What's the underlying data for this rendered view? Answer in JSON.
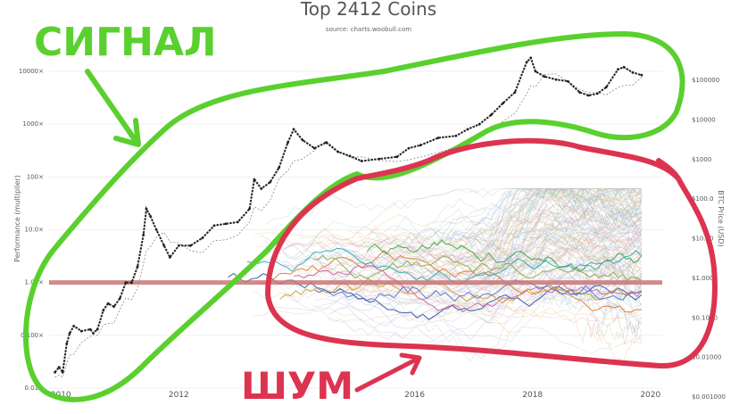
{
  "chart_data": {
    "type": "line",
    "title": "Top 2412 Coins",
    "subtitle": "source: charts.woobull.com",
    "ylabel": "Performance (multiplier)",
    "y2label": "BTC Price (USD)",
    "y_scale": "log",
    "ylim": [
      0.01,
      10000
    ],
    "y2lim": [
      0.001,
      100000
    ],
    "y_ticks": [
      "0.01",
      "0.100",
      "1.00",
      "10.0",
      "100",
      "1000",
      "10000"
    ],
    "y2_ticks": [
      "$0.001000",
      "$0.01000",
      "$0.1000",
      "$1.000",
      "$10.00",
      "$100.0",
      "$1000",
      "$10000",
      "$100000"
    ],
    "x_ticks": [
      "2010",
      "2012",
      "2016",
      "2018",
      "2020"
    ],
    "xlim": [
      2009.8,
      2020.2
    ],
    "baseline": 1.0,
    "series": [
      {
        "color": "#222222",
        "points": [
          [
            2009.9,
            0.02
          ],
          [
            2009.97,
            0.025
          ],
          [
            2010.03,
            0.02
          ],
          [
            2010.1,
            0.07
          ],
          [
            2010.15,
            0.11
          ],
          [
            2010.22,
            0.15
          ],
          [
            2010.35,
            0.12
          ],
          [
            2010.5,
            0.13
          ],
          [
            2010.55,
            0.11
          ],
          [
            2010.62,
            0.13
          ],
          [
            2010.72,
            0.3
          ],
          [
            2010.8,
            0.4
          ],
          [
            2010.9,
            0.35
          ],
          [
            2011.0,
            0.5
          ],
          [
            2011.1,
            1.0
          ],
          [
            2011.2,
            1.0
          ],
          [
            2011.3,
            2.0
          ],
          [
            2011.4,
            8.0
          ],
          [
            2011.45,
            25.0
          ],
          [
            2011.52,
            18.0
          ],
          [
            2011.62,
            10.0
          ],
          [
            2011.75,
            5.0
          ],
          [
            2011.85,
            3.0
          ],
          [
            2012.0,
            5.0
          ],
          [
            2012.2,
            5.0
          ],
          [
            2012.4,
            7.0
          ],
          [
            2012.6,
            12.0
          ],
          [
            2012.8,
            13.0
          ],
          [
            2013.0,
            14.0
          ],
          [
            2013.2,
            25.0
          ],
          [
            2013.28,
            90.0
          ],
          [
            2013.4,
            60.0
          ],
          [
            2013.55,
            80.0
          ],
          [
            2013.7,
            150.0
          ],
          [
            2013.85,
            450.0
          ],
          [
            2013.95,
            800.0
          ],
          [
            2014.1,
            500.0
          ],
          [
            2014.3,
            350.0
          ],
          [
            2014.5,
            450.0
          ],
          [
            2014.7,
            300.0
          ],
          [
            2014.9,
            250.0
          ],
          [
            2015.1,
            200.0
          ],
          [
            2015.4,
            220.0
          ],
          [
            2015.7,
            240.0
          ],
          [
            2015.9,
            350.0
          ],
          [
            2016.1,
            400.0
          ],
          [
            2016.4,
            550.0
          ],
          [
            2016.7,
            600.0
          ],
          [
            2016.9,
            800.0
          ],
          [
            2017.1,
            1000.0
          ],
          [
            2017.3,
            1500.0
          ],
          [
            2017.5,
            2500.0
          ],
          [
            2017.7,
            4000.0
          ],
          [
            2017.9,
            15000.0
          ],
          [
            2017.97,
            18000.0
          ],
          [
            2018.05,
            10000.0
          ],
          [
            2018.2,
            8000.0
          ],
          [
            2018.4,
            7000.0
          ],
          [
            2018.6,
            6500.0
          ],
          [
            2018.8,
            4000.0
          ],
          [
            2018.95,
            3500.0
          ],
          [
            2019.1,
            3800.0
          ],
          [
            2019.25,
            5000.0
          ],
          [
            2019.45,
            11000.0
          ],
          [
            2019.55,
            12000.0
          ],
          [
            2019.7,
            9500.0
          ],
          [
            2019.85,
            8500.0
          ]
        ]
      }
    ]
  },
  "annotations": {
    "signal_label": "СИГНАЛ",
    "noise_label": "ШУМ"
  }
}
